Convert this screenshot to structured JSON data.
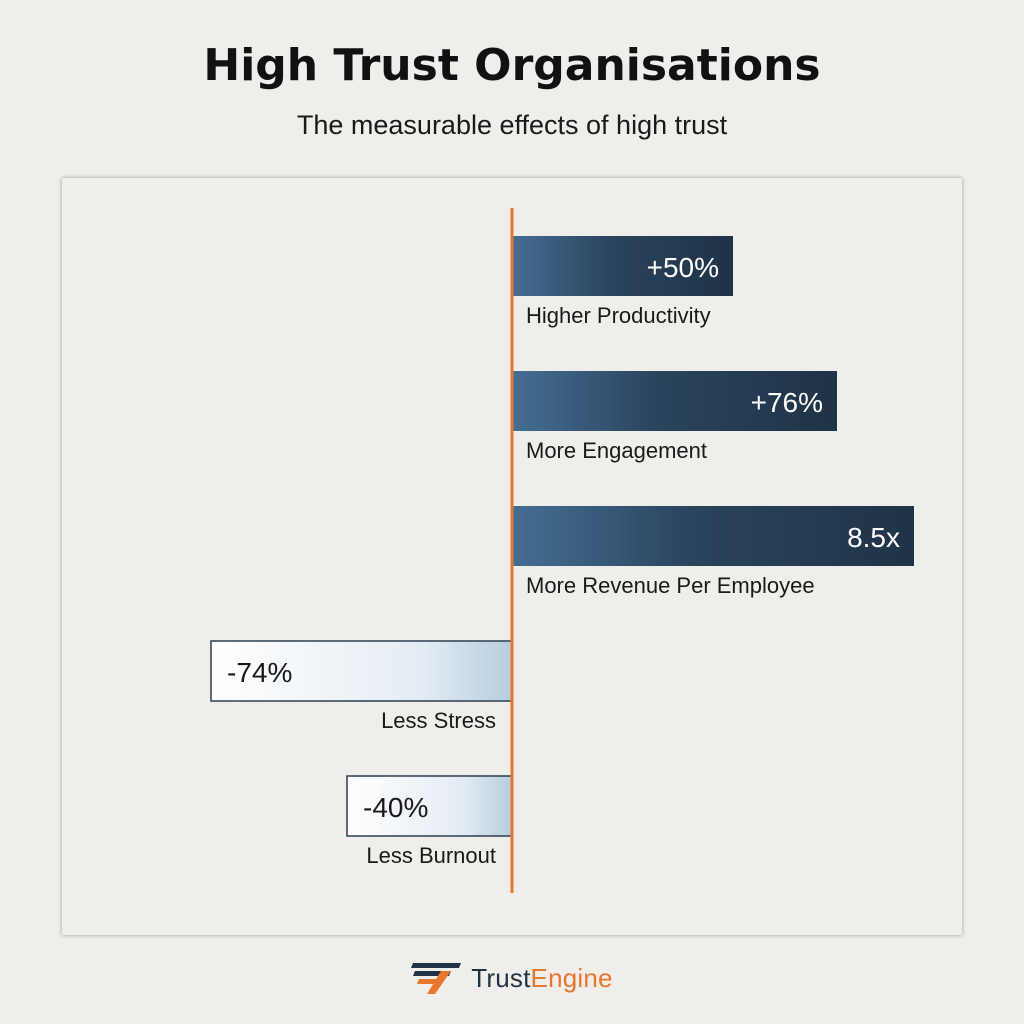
{
  "title": "High Trust Organisations",
  "subtitle": "The measurable effects of high trust",
  "colors": {
    "axis": "#e8762c",
    "positive_bar_dark": "#1f3347",
    "positive_bar_light": "#456e93",
    "negative_bar_light": "#ffffff",
    "negative_bar_dark": "#b6cde0",
    "negative_border": "#2c3e50",
    "brand_dark": "#1f3347",
    "brand_orange": "#e8762c"
  },
  "chart_data": {
    "type": "bar",
    "orientation": "horizontal",
    "categories": [
      "Higher Productivity",
      "More Engagement",
      "More Revenue Per Employee",
      "Less Stress",
      "Less Burnout"
    ],
    "values": [
      50,
      76,
      8.5,
      -74,
      -40
    ],
    "value_labels": [
      "+50%",
      "+76%",
      "8.5x",
      "-74%",
      "-40%"
    ]
  },
  "footer": {
    "brand_part1": "Trust",
    "brand_part2": "Engine",
    "logo_icon": "trustengine-logo-icon"
  }
}
